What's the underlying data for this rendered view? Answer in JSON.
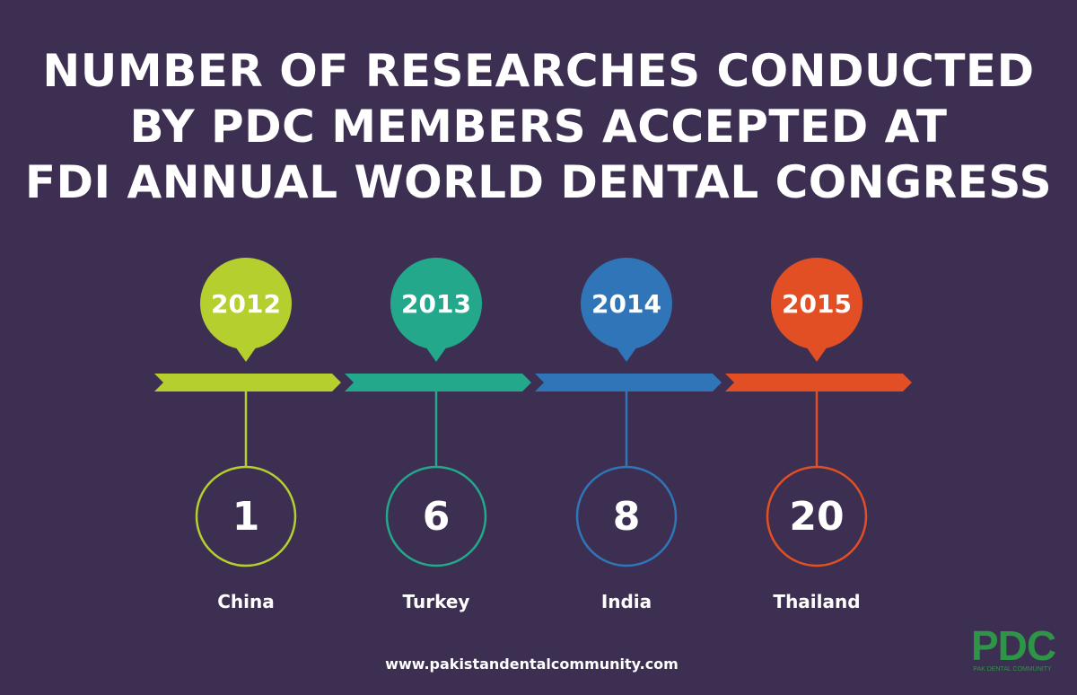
{
  "title_lines": [
    "NUMBER OF RESEARCHES CONDUCTED",
    "BY PDC MEMBERS ACCEPTED AT",
    "FDI ANNUAL WORLD DENTAL CONGRESS"
  ],
  "chart_data": {
    "type": "timeline",
    "title": "NUMBER OF RESEARCHES CONDUCTED BY PDC MEMBERS ACCEPTED AT FDI ANNUAL WORLD DENTAL CONGRESS",
    "categories": [
      "2012",
      "2013",
      "2014",
      "2015"
    ],
    "values": [
      1,
      6,
      8,
      20
    ],
    "locations": [
      "China",
      "Turkey",
      "India",
      "Thailand"
    ],
    "colors": [
      "#b5cf2e",
      "#23a88c",
      "#2f75b8",
      "#e24f24"
    ]
  },
  "footer": {
    "url": "www.pakistandentalcommunity.com"
  },
  "logo": {
    "mark": "PDC",
    "subtitle": "PAK DENTAL COMMUNITY"
  }
}
